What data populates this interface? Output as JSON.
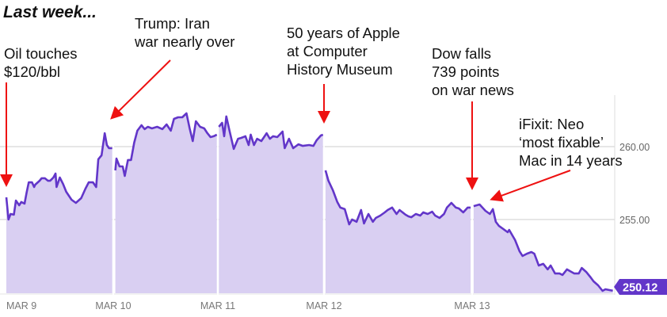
{
  "title": "Last week...",
  "annotations": [
    {
      "id": "oil",
      "text": "Oil touches\n$120/bbl"
    },
    {
      "id": "trump",
      "text": "Trump: Iran\nwar nearly over"
    },
    {
      "id": "apple",
      "text": "50 years of Apple\nat Computer\nHistory Museum"
    },
    {
      "id": "dow",
      "text": "Dow falls\n739 points\non war news"
    },
    {
      "id": "ifixit",
      "text": "iFixit: Neo\n‘most fixable’\nMac in 14 years"
    }
  ],
  "colors": {
    "line": "#6236c9",
    "fill": "#d9cff2",
    "arrow": "#ee1111",
    "grid": "#dddddd",
    "tag": "#6236c9"
  },
  "chart_data": {
    "type": "area",
    "title": "Last week...",
    "xlabel": "",
    "ylabel": "",
    "x_ticks": [
      "MAR 9",
      "MAR 10",
      "MAR 11",
      "MAR 12",
      "MAR 13"
    ],
    "y_ticks": [
      {
        "value": 260,
        "label": "260.00"
      },
      {
        "value": 255,
        "label": "255.00"
      }
    ],
    "ylim": [
      249.95,
      270.05
    ],
    "grid": true,
    "last_price": {
      "value": 250.12,
      "label": "250.12"
    },
    "x_units": "fraction of trading session (0-1) within each day",
    "sessions": [
      {
        "day": "MAR 9",
        "points": [
          [
            0,
            256.52
          ],
          [
            0.02,
            255.0
          ],
          [
            0.04,
            255.38
          ],
          [
            0.07,
            255.33
          ],
          [
            0.09,
            256.3
          ],
          [
            0.12,
            255.98
          ],
          [
            0.14,
            256.2
          ],
          [
            0.17,
            256.09
          ],
          [
            0.19,
            256.85
          ],
          [
            0.21,
            257.55
          ],
          [
            0.24,
            257.55
          ],
          [
            0.26,
            257.23
          ],
          [
            0.27,
            257.39
          ],
          [
            0.31,
            257.66
          ],
          [
            0.33,
            257.83
          ],
          [
            0.36,
            257.83
          ],
          [
            0.39,
            257.66
          ],
          [
            0.41,
            257.66
          ],
          [
            0.44,
            257.88
          ],
          [
            0.46,
            258.15
          ],
          [
            0.47,
            257.23
          ],
          [
            0.5,
            257.88
          ],
          [
            0.53,
            257.45
          ],
          [
            0.56,
            256.9
          ],
          [
            0.61,
            256.36
          ],
          [
            0.65,
            256.14
          ],
          [
            0.7,
            256.47
          ],
          [
            0.74,
            257.12
          ],
          [
            0.77,
            257.55
          ],
          [
            0.81,
            257.55
          ],
          [
            0.84,
            257.23
          ],
          [
            0.86,
            259.13
          ],
          [
            0.89,
            259.4
          ],
          [
            0.92,
            260.92
          ],
          [
            0.94,
            260.11
          ],
          [
            0.96,
            259.89
          ],
          [
            0.99,
            259.89
          ]
        ]
      },
      {
        "day": "MAR 10",
        "points": [
          [
            0.02,
            258.37
          ],
          [
            0.03,
            259.18
          ],
          [
            0.06,
            258.64
          ],
          [
            0.09,
            258.64
          ],
          [
            0.11,
            257.99
          ],
          [
            0.14,
            259.08
          ],
          [
            0.17,
            259.08
          ],
          [
            0.2,
            260.27
          ],
          [
            0.23,
            261.09
          ],
          [
            0.27,
            261.47
          ],
          [
            0.3,
            261.2
          ],
          [
            0.33,
            261.36
          ],
          [
            0.37,
            261.25
          ],
          [
            0.42,
            261.36
          ],
          [
            0.47,
            261.2
          ],
          [
            0.51,
            261.52
          ],
          [
            0.55,
            261.09
          ],
          [
            0.58,
            261.9
          ],
          [
            0.62,
            262.01
          ],
          [
            0.66,
            262.01
          ],
          [
            0.7,
            262.28
          ],
          [
            0.73,
            261.25
          ],
          [
            0.76,
            260.38
          ],
          [
            0.79,
            261.74
          ],
          [
            0.83,
            261.36
          ],
          [
            0.87,
            261.25
          ],
          [
            0.9,
            260.92
          ],
          [
            0.93,
            260.65
          ],
          [
            0.96,
            260.71
          ],
          [
            0.99,
            260.82
          ]
        ]
      },
      {
        "day": "MAR 11",
        "points": [
          [
            0.01,
            261.36
          ],
          [
            0.04,
            261.63
          ],
          [
            0.06,
            260.71
          ],
          [
            0.08,
            262.07
          ],
          [
            0.11,
            261.09
          ],
          [
            0.15,
            259.84
          ],
          [
            0.19,
            260.54
          ],
          [
            0.22,
            260.6
          ],
          [
            0.26,
            260.71
          ],
          [
            0.29,
            260.11
          ],
          [
            0.31,
            260.82
          ],
          [
            0.34,
            260.11
          ],
          [
            0.37,
            260.54
          ],
          [
            0.41,
            260.38
          ],
          [
            0.46,
            260.92
          ],
          [
            0.49,
            260.54
          ],
          [
            0.52,
            260.71
          ],
          [
            0.56,
            260.65
          ],
          [
            0.61,
            261.03
          ],
          [
            0.63,
            259.89
          ],
          [
            0.67,
            260.54
          ],
          [
            0.71,
            259.89
          ],
          [
            0.76,
            260.16
          ],
          [
            0.8,
            260.05
          ],
          [
            0.86,
            260.11
          ],
          [
            0.9,
            260.05
          ],
          [
            0.93,
            260.43
          ],
          [
            0.97,
            260.76
          ],
          [
            0.99,
            260.82
          ]
        ]
      },
      {
        "day": "MAR 12",
        "points": [
          [
            0.01,
            258.37
          ],
          [
            0.03,
            257.66
          ],
          [
            0.06,
            257.01
          ],
          [
            0.09,
            256.2
          ],
          [
            0.11,
            255.82
          ],
          [
            0.14,
            255.71
          ],
          [
            0.17,
            254.67
          ],
          [
            0.19,
            255.0
          ],
          [
            0.22,
            254.84
          ],
          [
            0.25,
            255.65
          ],
          [
            0.27,
            254.73
          ],
          [
            0.3,
            255.38
          ],
          [
            0.33,
            254.84
          ],
          [
            0.35,
            255.11
          ],
          [
            0.38,
            255.27
          ],
          [
            0.41,
            255.49
          ],
          [
            0.43,
            255.65
          ],
          [
            0.46,
            255.82
          ],
          [
            0.49,
            255.38
          ],
          [
            0.51,
            255.65
          ],
          [
            0.55,
            255.33
          ],
          [
            0.57,
            255.22
          ],
          [
            0.59,
            255.16
          ],
          [
            0.62,
            255.38
          ],
          [
            0.65,
            255.27
          ],
          [
            0.67,
            255.49
          ],
          [
            0.7,
            255.38
          ],
          [
            0.73,
            255.54
          ],
          [
            0.75,
            255.27
          ],
          [
            0.78,
            255.11
          ],
          [
            0.81,
            255.38
          ],
          [
            0.83,
            255.82
          ],
          [
            0.86,
            256.14
          ],
          [
            0.89,
            255.82
          ],
          [
            0.91,
            255.76
          ],
          [
            0.94,
            255.49
          ],
          [
            0.97,
            255.82
          ],
          [
            0.99,
            255.82
          ]
        ]
      },
      {
        "day": "MAR 13",
        "points": [
          [
            0.01,
            255.92
          ],
          [
            0.05,
            256.03
          ],
          [
            0.09,
            255.6
          ],
          [
            0.12,
            255.38
          ],
          [
            0.14,
            255.71
          ],
          [
            0.16,
            254.84
          ],
          [
            0.18,
            254.57
          ],
          [
            0.24,
            254.13
          ],
          [
            0.25,
            254.29
          ],
          [
            0.29,
            253.59
          ],
          [
            0.32,
            252.83
          ],
          [
            0.34,
            252.5
          ],
          [
            0.37,
            252.66
          ],
          [
            0.4,
            252.77
          ],
          [
            0.42,
            252.66
          ],
          [
            0.45,
            251.85
          ],
          [
            0.48,
            251.96
          ],
          [
            0.51,
            251.58
          ],
          [
            0.53,
            251.85
          ],
          [
            0.56,
            251.3
          ],
          [
            0.59,
            251.3
          ],
          [
            0.61,
            251.2
          ],
          [
            0.64,
            251.58
          ],
          [
            0.66,
            251.47
          ],
          [
            0.69,
            251.3
          ],
          [
            0.72,
            251.3
          ],
          [
            0.74,
            251.68
          ],
          [
            0.77,
            251.41
          ],
          [
            0.8,
            251.03
          ],
          [
            0.82,
            250.76
          ],
          [
            0.85,
            250.49
          ],
          [
            0.88,
            250.11
          ],
          [
            0.9,
            250.22
          ],
          [
            0.93,
            250.16
          ],
          [
            0.95,
            250.12
          ]
        ]
      }
    ]
  }
}
